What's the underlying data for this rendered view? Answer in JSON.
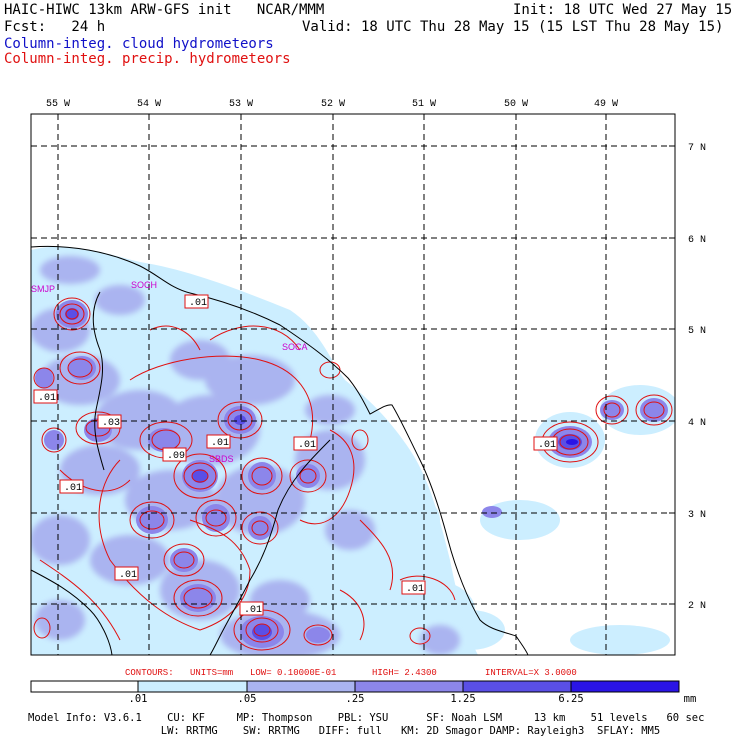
{
  "header": {
    "model_line": "HAIC-HIWC 13km ARW-GFS init   NCAR/MMM",
    "init_line": "Init: 18 UTC Wed 27 May 15",
    "fcst_line": "Fcst:   24 h",
    "valid_line": "Valid: 18 UTC Thu 28 May 15 (15 LST Thu 28 May 15)",
    "field_cloud": "Column-integ. cloud hydrometeors",
    "field_precip": "Column-integ. precip. hydrometeors"
  },
  "colors": {
    "cloud_label": "#1010c8",
    "precip_label": "#e01010",
    "contour": "#e01010",
    "grid": "#000000",
    "station": "#cc00cc",
    "fill_levels": [
      "#ffffff",
      "#cceeff",
      "#aab4f0",
      "#8c86ea",
      "#5a4fe6",
      "#2a14e6"
    ]
  },
  "map": {
    "lon_labels": [
      "55 W",
      "54 W",
      "53 W",
      "52 W",
      "51 W",
      "50 W",
      "49 W"
    ],
    "lat_labels": [
      "7 N",
      "6 N",
      "5 N",
      "4 N",
      "3 N",
      "2 N"
    ],
    "stations": [
      "SMJP",
      "SOCH",
      "SOCA",
      "SBDS"
    ],
    "contour_labels": [
      ".01",
      ".01",
      ".03",
      ".01",
      ".09",
      ".01",
      ".01",
      ".01",
      ".01",
      ".01",
      ".01"
    ]
  },
  "contours_info": {
    "contours": "CONTOURS:",
    "units": "UNITS=mm",
    "low": "LOW= 0.10000E-01",
    "high": "HIGH=  2.4300",
    "interval": "INTERVAL=X  3.0000"
  },
  "colorbar": {
    "labels": [
      ".01",
      ".05",
      ".25",
      "1.25",
      "6.25"
    ],
    "unit": "mm"
  },
  "footer": {
    "line1": "Model Info: V3.6.1    CU: KF     MP: Thompson    PBL: YSU      SF: Noah LSM     13 km    51 levels   60 sec",
    "line2": "                     LW: RRTMG    SW: RRTMG   DIFF: full   KM: 2D Smagor DAMP: Rayleigh3  SFLAY: MM5"
  }
}
